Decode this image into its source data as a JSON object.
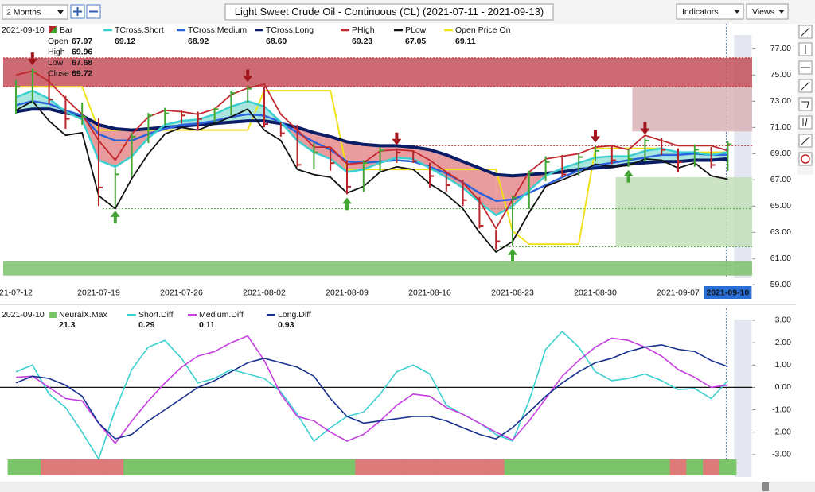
{
  "toolbar": {
    "period": "2 Months",
    "indicators": "Indicators",
    "views": "Views"
  },
  "chart_data": [
    {
      "type": "ohlc-overlay",
      "title": "Light Sweet Crude Oil - Continuous (CL) (2021-07-11 - 2021-09-13)",
      "categories": [
        "21-07-12",
        null,
        null,
        null,
        null,
        "2021-07-19",
        null,
        null,
        null,
        null,
        "2021-07-26",
        null,
        null,
        null,
        null,
        "2021-08-02",
        null,
        null,
        null,
        null,
        "2021-08-09",
        null,
        null,
        null,
        null,
        "2021-08-16",
        null,
        null,
        null,
        null,
        "2021-08-23",
        null,
        null,
        null,
        null,
        "2021-08-30",
        null,
        null,
        null,
        null,
        "2021-09-07",
        null,
        null,
        "2021-09-10"
      ],
      "highlight_last": true,
      "ylim": [
        59.5,
        78.9
      ],
      "yticks": [
        {
          "value": 77,
          "label": "77.00"
        },
        {
          "value": 75,
          "label": "75.00"
        },
        {
          "value": 73,
          "label": "73.00"
        },
        {
          "value": 71,
          "label": "71.00"
        },
        {
          "value": 69,
          "label": "69.00"
        },
        {
          "value": 67,
          "label": "67.00"
        },
        {
          "value": 65,
          "label": "65.00"
        },
        {
          "value": 63,
          "label": "63.00"
        },
        {
          "value": 61,
          "label": "61.00"
        },
        {
          "value": 59,
          "label": "59.00"
        }
      ],
      "ohlc": [
        {
          "label": "Open",
          "value": 67.97
        },
        {
          "label": "High",
          "value": 69.96
        },
        {
          "label": "Low",
          "value": 67.68
        },
        {
          "label": "Close",
          "value": 69.72
        }
      ],
      "bars": {
        "name": "Bar",
        "up_color": "#43a634",
        "down_color": "#b8242a",
        "high": [
          74.6,
          75.5,
          75.2,
          73.4,
          72.9,
          71.7,
          67.9,
          70.6,
          72.1,
          72.5,
          72.3,
          72.2,
          72.5,
          73.8,
          74.2,
          74.1,
          71.4,
          71.2,
          69.8,
          69.4,
          68.5,
          68.5,
          69.5,
          69.4,
          69.2,
          68.3,
          67.5,
          67.0,
          65.7,
          63.2,
          65.8,
          67.7,
          68.8,
          68.9,
          69.0,
          69.6,
          69.6,
          69.3,
          70.2,
          70.2,
          69.4,
          69.7,
          69.5,
          69.96
        ],
        "low": [
          72.0,
          72.9,
          72.8,
          70.9,
          71.2,
          65.0,
          64.9,
          67.2,
          69.8,
          71.2,
          71.3,
          70.8,
          71.4,
          71.9,
          72.9,
          71.0,
          70.3,
          68.0,
          67.8,
          67.7,
          65.9,
          66.1,
          67.6,
          68.3,
          68.3,
          66.4,
          66.1,
          65.0,
          63.3,
          61.7,
          62.0,
          64.8,
          66.9,
          67.2,
          67.3,
          68.4,
          68.2,
          68.0,
          68.4,
          68.9,
          67.6,
          68.0,
          67.9,
          67.68
        ],
        "close": [
          74.1,
          75.25,
          73.13,
          71.65,
          71.81,
          66.42,
          67.42,
          70.3,
          71.91,
          72.07,
          71.91,
          71.65,
          72.39,
          73.62,
          73.95,
          71.26,
          70.56,
          68.15,
          69.09,
          68.28,
          66.48,
          68.29,
          69.25,
          69.09,
          68.44,
          67.29,
          66.59,
          65.46,
          63.5,
          62.32,
          65.64,
          67.54,
          68.36,
          67.42,
          68.74,
          69.21,
          68.5,
          68.59,
          69.99,
          69.29,
          68.35,
          69.3,
          68.14,
          69.72
        ]
      },
      "series": [
        {
          "name": "TCross.Short",
          "readout": "69.12",
          "color": "#3ccfcf",
          "width": 2.5,
          "values": [
            73.3,
            73.8,
            73.2,
            72.2,
            71.6,
            68.5,
            68.0,
            68.8,
            70.2,
            71.2,
            71.5,
            71.6,
            72.0,
            72.6,
            73.0,
            72.6,
            71.4,
            70.0,
            69.1,
            68.6,
            67.6,
            67.8,
            68.3,
            68.7,
            68.6,
            67.9,
            67.2,
            66.4,
            65.3,
            64.3,
            65.0,
            66.2,
            67.3,
            67.9,
            68.3,
            68.7,
            68.8,
            68.8,
            69.2,
            69.4,
            69.1,
            69.1,
            68.9,
            69.12
          ]
        },
        {
          "name": "TCross.Medium",
          "readout": "68.92",
          "color": "#2b63dd",
          "width": 2.5,
          "values": [
            72.7,
            73.0,
            72.8,
            72.3,
            71.9,
            70.5,
            70.0,
            70.0,
            70.5,
            70.9,
            71.2,
            71.3,
            71.5,
            71.8,
            72.0,
            71.9,
            71.4,
            70.6,
            69.9,
            69.3,
            68.4,
            68.3,
            68.4,
            68.5,
            68.4,
            68.0,
            67.5,
            66.8,
            66.0,
            65.4,
            65.5,
            66.0,
            66.6,
            67.2,
            67.7,
            68.1,
            68.3,
            68.5,
            68.7,
            68.9,
            68.9,
            69.0,
            68.9,
            68.92
          ]
        },
        {
          "name": "TCross.Long",
          "readout": "68.60",
          "color": "#0b1c66",
          "width": 4,
          "values": [
            72.2,
            72.4,
            72.4,
            72.1,
            71.9,
            71.2,
            70.9,
            70.8,
            70.9,
            71.0,
            71.1,
            71.2,
            71.3,
            71.4,
            71.5,
            71.5,
            71.3,
            71.0,
            70.6,
            70.3,
            69.9,
            69.7,
            69.6,
            69.6,
            69.5,
            69.3,
            68.9,
            68.4,
            67.9,
            67.4,
            67.3,
            67.4,
            67.5,
            67.6,
            67.8,
            67.9,
            68.0,
            68.2,
            68.3,
            68.4,
            68.4,
            68.5,
            68.5,
            68.6
          ]
        },
        {
          "name": "PHigh",
          "readout": "69.23",
          "color": "#c1272d",
          "width": 1.8,
          "values": [
            75.0,
            75.3,
            74.5,
            73.2,
            72.0,
            70.0,
            68.5,
            70.5,
            71.8,
            72.3,
            72.2,
            72.0,
            72.4,
            73.5,
            74.0,
            74.3,
            72.0,
            70.8,
            69.5,
            69.5,
            68.2,
            68.3,
            69.2,
            69.3,
            69.2,
            68.5,
            67.6,
            66.8,
            65.4,
            63.3,
            65.5,
            67.6,
            68.6,
            68.8,
            69.0,
            69.5,
            69.6,
            69.3,
            70.4,
            70.0,
            69.6,
            69.6,
            69.6,
            69.23
          ]
        },
        {
          "name": "PLow",
          "readout": "67.05",
          "color": "#111111",
          "width": 1.8,
          "values": [
            72.3,
            73.0,
            71.5,
            70.4,
            70.6,
            65.8,
            64.8,
            67.1,
            69.0,
            70.5,
            71.0,
            70.8,
            71.3,
            71.8,
            72.4,
            70.8,
            70.0,
            67.8,
            67.4,
            67.2,
            66.0,
            66.5,
            67.6,
            68.0,
            67.8,
            66.7,
            65.9,
            64.8,
            63.0,
            61.5,
            62.3,
            64.5,
            66.5,
            67.0,
            67.5,
            68.2,
            68.0,
            68.1,
            68.6,
            68.5,
            67.9,
            68.3,
            67.3,
            67.05
          ]
        },
        {
          "name": "Open Price On",
          "readout": "69.11",
          "color": "#efe11a",
          "width": 2,
          "values": [
            74.1,
            74.1,
            74.1,
            74.1,
            74.1,
            70.8,
            70.8,
            70.8,
            70.8,
            70.8,
            70.8,
            70.8,
            70.8,
            70.8,
            70.8,
            73.8,
            73.8,
            73.8,
            73.8,
            73.8,
            67.8,
            67.8,
            67.8,
            67.8,
            67.8,
            67.8,
            67.8,
            67.8,
            67.8,
            67.8,
            63.1,
            62.1,
            62.1,
            62.1,
            62.1,
            69.4,
            69.4,
            69.4,
            69.4,
            69.4,
            69.1,
            69.1,
            69.1,
            69.11
          ]
        }
      ],
      "zones": [
        {
          "from": 74.1,
          "to": 76.3,
          "start": 0,
          "color": "#c4505a"
        },
        {
          "from": 70.7,
          "to": 74.1,
          "start": 38,
          "color": "#d9b3b6"
        },
        {
          "from": 61.9,
          "to": 67.2,
          "start": 37,
          "color": "#c3dfba"
        },
        {
          "from": 59.7,
          "to": 60.8,
          "start": 0,
          "color": "#7cc06c"
        }
      ],
      "levels": [
        {
          "value": 76.3,
          "start": 0,
          "color": "#c1272d"
        },
        {
          "value": 74.1,
          "start": 0,
          "color": "#c1272d"
        },
        {
          "value": 69.6,
          "start": 24,
          "color": "#c1272d"
        },
        {
          "value": 64.8,
          "start": 6,
          "color": "#43a634"
        },
        {
          "value": 61.9,
          "start": 30,
          "color": "#43a634"
        }
      ],
      "sell_arrows": [
        1,
        14,
        23,
        35,
        38
      ],
      "buy_arrows": [
        6,
        20,
        30,
        37
      ]
    },
    {
      "type": "line",
      "ylim": [
        -4.0,
        3.53
      ],
      "yticks": [
        {
          "value": 3,
          "label": "3.00"
        },
        {
          "value": 2,
          "label": "2.00"
        },
        {
          "value": 1,
          "label": "1.00"
        },
        {
          "value": 0,
          "label": "0.00"
        },
        {
          "value": -1,
          "label": "-1.00"
        },
        {
          "value": -2,
          "label": "-2.00"
        },
        {
          "value": -3,
          "label": "-3.00"
        }
      ],
      "zero_line": true,
      "strip": {
        "name": "NeuralX.Max",
        "readout": 21.3,
        "up_color": "#7cc46a",
        "down_color": "#dd7a7a",
        "values": [
          1,
          1,
          -1,
          -1,
          -1,
          -1,
          -1,
          1,
          1,
          1,
          1,
          1,
          1,
          1,
          1,
          1,
          1,
          1,
          1,
          1,
          1,
          -1,
          -1,
          -1,
          -1,
          -1,
          -1,
          -1,
          -1,
          -1,
          1,
          1,
          1,
          1,
          1,
          1,
          1,
          1,
          1,
          1,
          -1,
          1,
          -1,
          1
        ]
      },
      "series": [
        {
          "name": "Short.Diff",
          "readout": 0.29,
          "color": "#3ccfcf",
          "values": [
            0.7,
            1.0,
            -0.3,
            -0.9,
            -2.0,
            -3.2,
            -1.0,
            0.8,
            1.8,
            2.1,
            1.3,
            0.2,
            0.4,
            0.8,
            0.6,
            0.4,
            -0.2,
            -1.2,
            -2.4,
            -1.8,
            -1.3,
            -1.1,
            -0.3,
            0.7,
            1.0,
            0.6,
            -0.8,
            -1.2,
            -1.6,
            -2.1,
            -2.4,
            -0.6,
            1.7,
            2.5,
            1.8,
            0.7,
            0.3,
            0.4,
            0.6,
            0.3,
            -0.1,
            -0.05,
            -0.5,
            0.29
          ]
        },
        {
          "name": "Medium.Diff",
          "readout": 0.11,
          "color": "#c63fe0",
          "values": [
            0.45,
            0.5,
            0,
            -0.5,
            -0.6,
            -1.6,
            -2.5,
            -1.5,
            -0.6,
            0.2,
            0.9,
            1.4,
            1.6,
            2.0,
            2.3,
            1.2,
            -0.3,
            -1.3,
            -1.5,
            -2.0,
            -2.4,
            -2.1,
            -1.5,
            -0.8,
            -0.3,
            -0.4,
            -0.9,
            -1.2,
            -1.6,
            -2.0,
            -2.35,
            -1.5,
            -0.5,
            0.5,
            1.2,
            1.8,
            2.2,
            2.1,
            1.8,
            1.4,
            0.8,
            0.45,
            0.0,
            0.11
          ]
        },
        {
          "name": "Long.Diff",
          "readout": 0.93,
          "color": "#16328f",
          "values": [
            0.2,
            0.5,
            0.4,
            0.1,
            -0.4,
            -1.6,
            -2.3,
            -2.1,
            -1.5,
            -1.0,
            -0.5,
            0.0,
            0.3,
            0.7,
            1.1,
            1.3,
            1.1,
            0.9,
            0.5,
            -0.5,
            -1.3,
            -1.6,
            -1.5,
            -1.4,
            -1.3,
            -1.3,
            -1.5,
            -1.8,
            -2.1,
            -2.3,
            -1.8,
            -1.1,
            -0.4,
            0.2,
            0.7,
            1.1,
            1.3,
            1.6,
            1.8,
            1.9,
            1.7,
            1.6,
            1.2,
            0.93
          ]
        }
      ]
    }
  ]
}
